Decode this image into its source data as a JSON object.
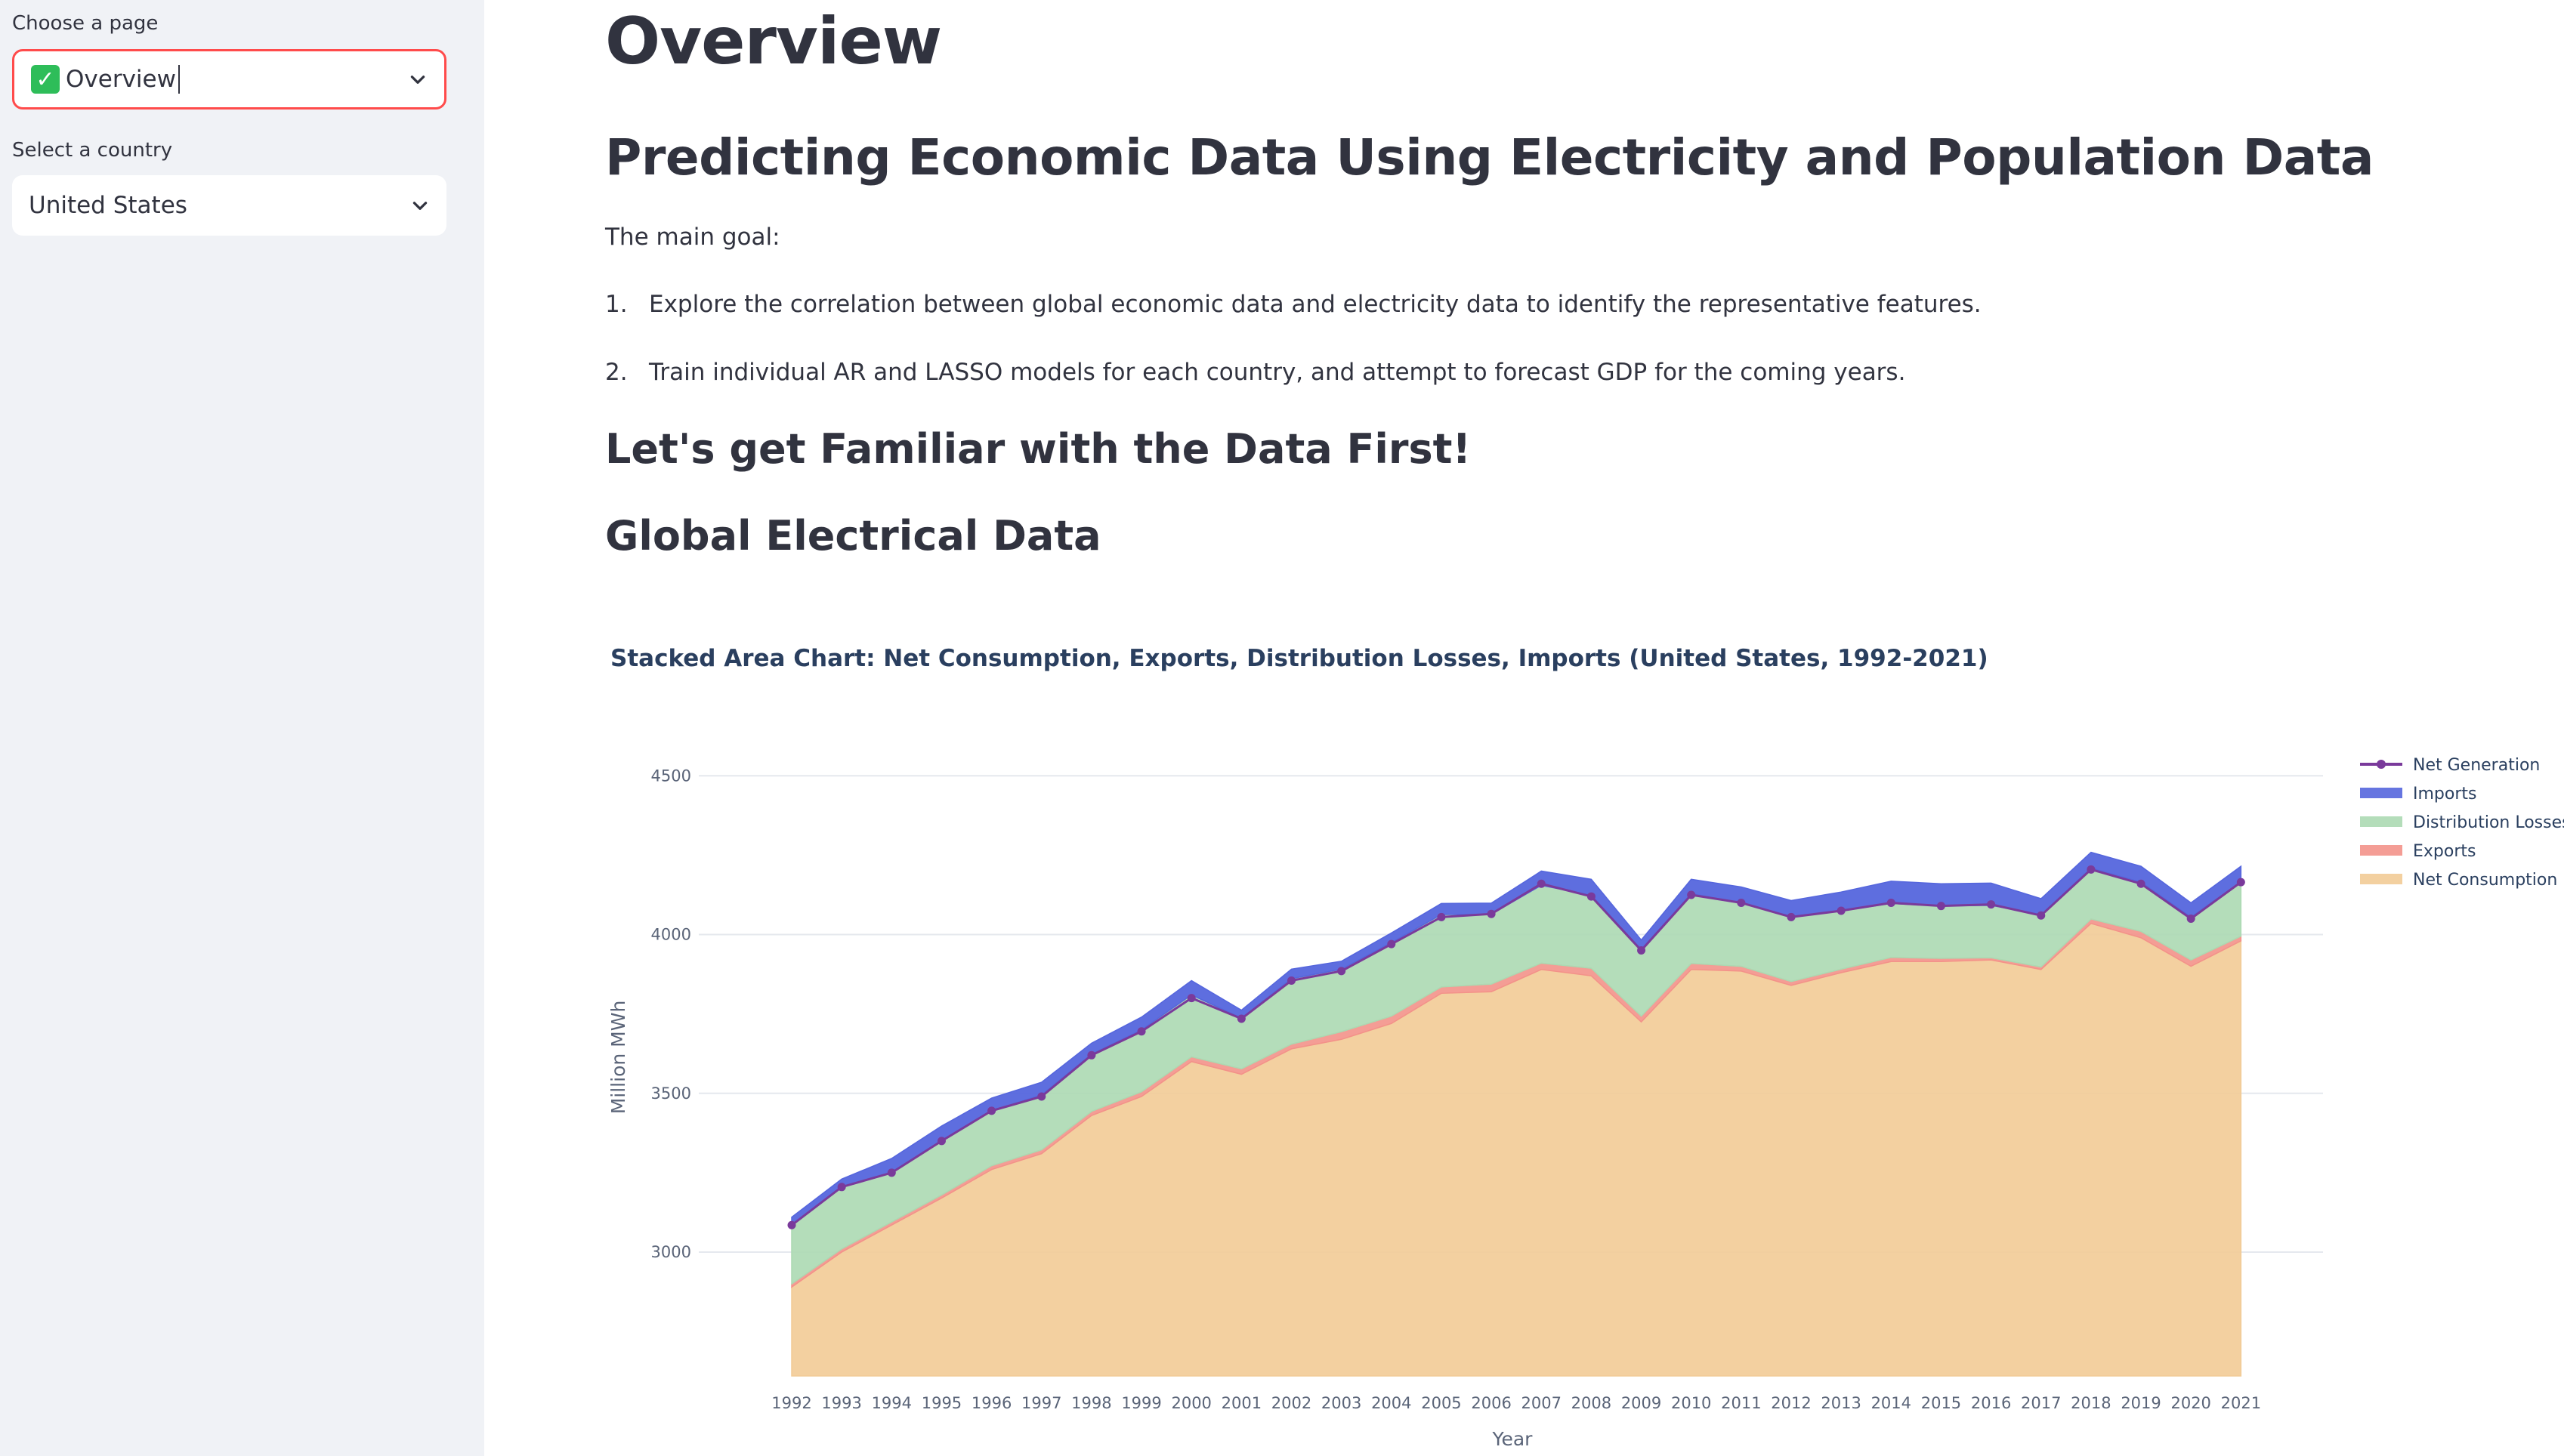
{
  "sidebar": {
    "page_label": "Choose a page",
    "page_value": "Overview",
    "country_label": "Select a country",
    "country_value": "United States"
  },
  "main": {
    "title": "Overview",
    "subtitle": "Predicting Economic Data Using Electricity and Population Data",
    "goal_intro": "The main goal:",
    "goals": [
      {
        "num": "1.",
        "text": "Explore the correlation between global economic data and electricity data to identify the representative features."
      },
      {
        "num": "2.",
        "text": "Train individual AR and LASSO models for each country, and attempt to forecast GDP for the coming years."
      }
    ],
    "section_heading": "Let's get Familiar with the Data First!",
    "subsection_heading": "Global Electrical Data"
  },
  "colors": {
    "net_consumption": "#f2cb96",
    "exports": "#f3928a",
    "distribution_losses": "#acd9b2",
    "imports": "#5566dd",
    "net_generation": "#7a3a9b",
    "accent": "#ff4b4b",
    "sidebar_bg": "#f0f2f6"
  },
  "chart_data": {
    "type": "area",
    "title": "Stacked Area Chart: Net Consumption, Exports, Distribution Losses, Imports (United States, 1992-2021)",
    "xlabel": "Year",
    "ylabel": "Million MWh",
    "ylim": [
      2610,
      4660
    ],
    "yticks": [
      3000,
      3500,
      4000,
      4500
    ],
    "legend_position": "right",
    "legend": [
      "Net Generation",
      "Imports",
      "Distribution Losses",
      "Exports",
      "Net Consumption"
    ],
    "x": [
      "1992",
      "1993",
      "1994",
      "1995",
      "1996",
      "1997",
      "1998",
      "1999",
      "2000",
      "2001",
      "2002",
      "2003",
      "2004",
      "2005",
      "2006",
      "2007",
      "2008",
      "2009",
      "2010",
      "2011",
      "2012",
      "2013",
      "2014",
      "2015",
      "2016",
      "2017",
      "2018",
      "2019",
      "2020",
      "2021"
    ],
    "series": [
      {
        "name": "Net Consumption",
        "values": [
          2890,
          3000,
          3085,
          3170,
          3260,
          3310,
          3430,
          3490,
          3600,
          3560,
          3640,
          3670,
          3720,
          3815,
          3820,
          3890,
          3870,
          3725,
          3890,
          3885,
          3840,
          3880,
          3915,
          3915,
          3920,
          3890,
          4035,
          3990,
          3900,
          3980
        ]
      },
      {
        "name": "Exports",
        "values": [
          10,
          10,
          10,
          10,
          12,
          12,
          13,
          15,
          15,
          17,
          15,
          24,
          23,
          20,
          24,
          20,
          24,
          18,
          19,
          15,
          12,
          11,
          13,
          10,
          7,
          8,
          14,
          20,
          20,
          15
        ]
      },
      {
        "name": "Distribution Losses",
        "values": [
          185,
          195,
          155,
          172,
          173,
          173,
          180,
          195,
          195,
          160,
          206,
          197,
          232,
          228,
          220,
          245,
          230,
          210,
          220,
          200,
          205,
          183,
          170,
          165,
          165,
          165,
          160,
          155,
          135,
          170
        ]
      },
      {
        "name": "Imports",
        "values": [
          25,
          25,
          45,
          45,
          40,
          40,
          35,
          40,
          45,
          25,
          30,
          25,
          30,
          35,
          35,
          45,
          50,
          30,
          45,
          50,
          50,
          60,
          70,
          70,
          70,
          50,
          50,
          50,
          45,
          50
        ]
      },
      {
        "name": "Net Generation",
        "values": [
          3085,
          3205,
          3250,
          3350,
          3445,
          3490,
          3620,
          3695,
          3800,
          3735,
          3855,
          3885,
          3970,
          4055,
          4065,
          4160,
          4120,
          3950,
          4125,
          4100,
          4055,
          4075,
          4100,
          4090,
          4095,
          4060,
          4205,
          4160,
          4050,
          4165
        ]
      }
    ]
  }
}
